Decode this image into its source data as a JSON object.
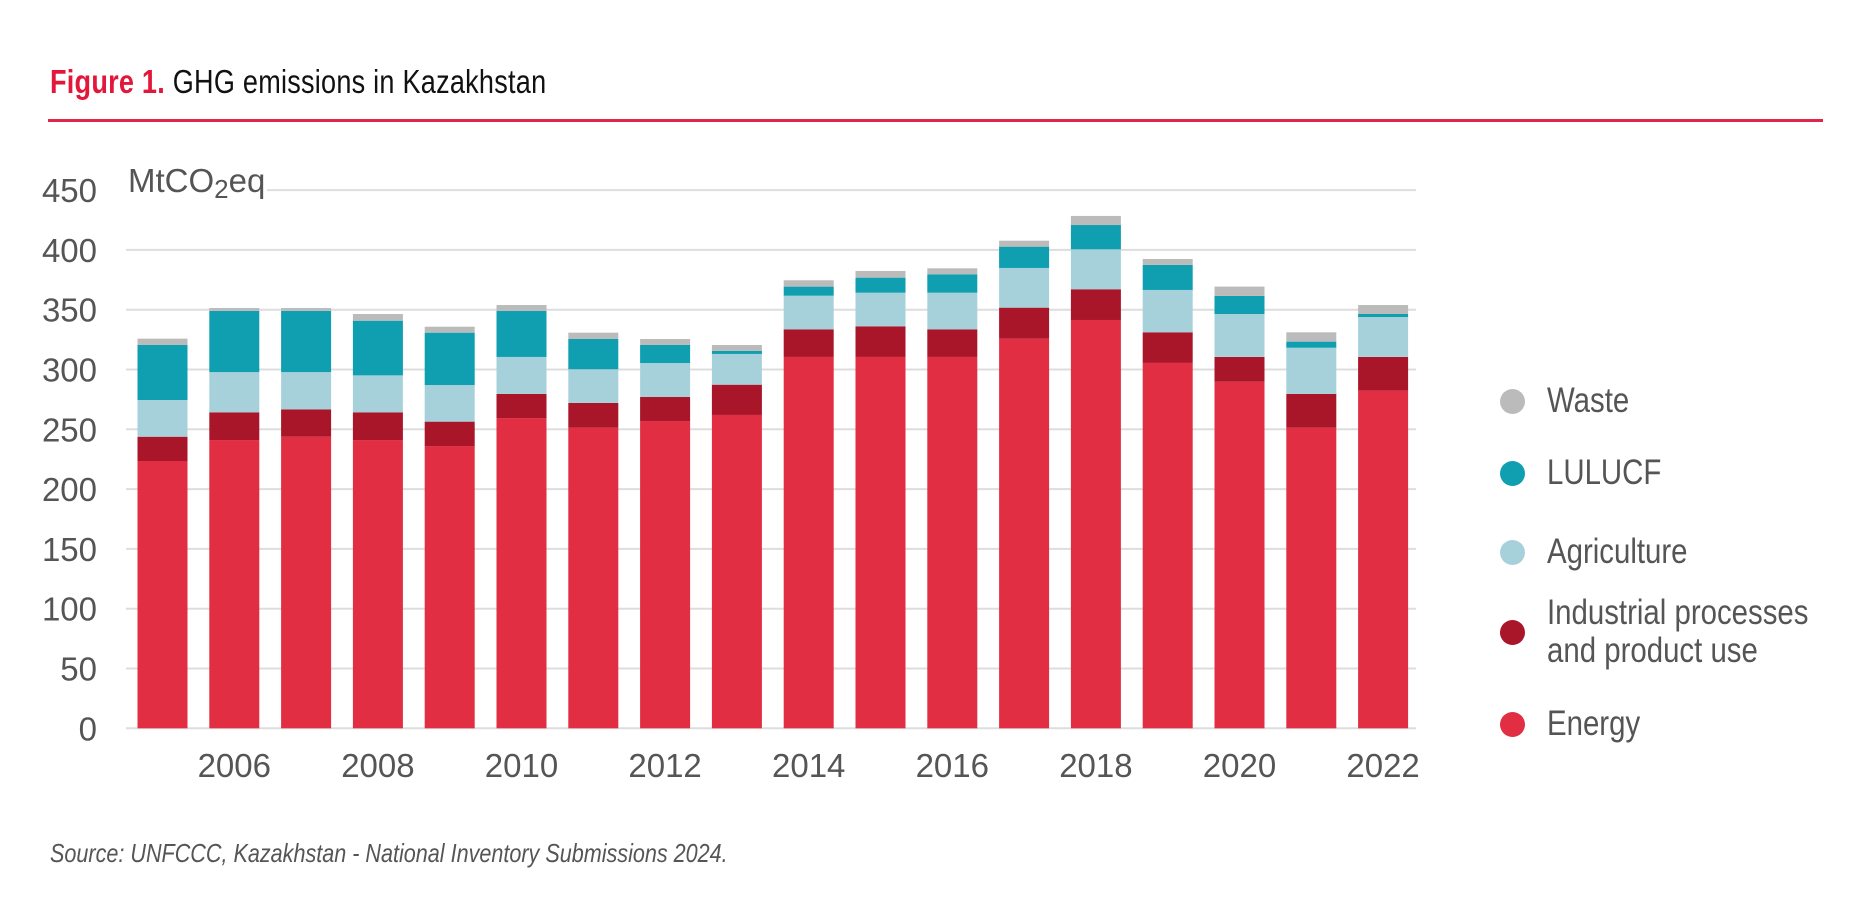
{
  "title": {
    "figure_label": "Figure 1.",
    "text": " GHG emissions in Kazakhstan"
  },
  "source": "Source: UNFCCC, Kazakhstan - National Inventory Submissions 2024.",
  "colors": {
    "title_accent": "#E2173A",
    "rule": "#E2264A",
    "gridline": "#DDDDDD",
    "tick_text": "#555555"
  },
  "chart_data": {
    "type": "bar",
    "stacked": true,
    "title": "GHG emissions in Kazakhstan",
    "xlabel": "",
    "ylabel": "MtCO2eq",
    "ylabel_parts": {
      "prefix": "MtCO",
      "sub": "2",
      "suffix": "eq"
    },
    "ylim": [
      0,
      450
    ],
    "yticks": [
      0,
      50,
      100,
      150,
      200,
      250,
      300,
      350,
      400,
      450
    ],
    "grid": true,
    "legend_position": "right",
    "categories": [
      "2005",
      "2006",
      "2007",
      "2008",
      "2009",
      "2010",
      "2011",
      "2012",
      "2013",
      "2014",
      "2015",
      "2016",
      "2017",
      "2018",
      "2019",
      "2020",
      "2021",
      "2022"
    ],
    "xtick_labels": [
      "2006",
      "2008",
      "2010",
      "2012",
      "2014",
      "2016",
      "2018",
      "2020",
      "2022"
    ],
    "series": [
      {
        "name": "Energy",
        "color": "#E12E43",
        "values": [
          223.5,
          241.0,
          243.8,
          241.0,
          236.0,
          259.4,
          251.4,
          256.9,
          262.0,
          310.5,
          310.5,
          310.5,
          325.8,
          341.4,
          305.5,
          289.8,
          251.4,
          282.3
        ]
      },
      {
        "name": "Industrial processes and product use",
        "color": "#A91629",
        "values": [
          20.3,
          23.2,
          22.9,
          23.2,
          20.4,
          20.2,
          20.6,
          20.1,
          25.3,
          23.1,
          25.6,
          23.1,
          25.9,
          25.7,
          25.6,
          20.7,
          28.2,
          28.2
        ]
      },
      {
        "name": "Agriculture",
        "color": "#A7D1DA",
        "values": [
          30.7,
          33.6,
          31.1,
          30.9,
          30.6,
          30.9,
          28.2,
          28.4,
          25.7,
          28.1,
          28.1,
          30.6,
          33.2,
          33.4,
          35.4,
          35.9,
          38.6,
          33.4
        ]
      },
      {
        "name": "LULUCF",
        "color": "#0F9FB1",
        "values": [
          46.0,
          51.2,
          51.2,
          45.7,
          43.8,
          38.4,
          25.3,
          15.1,
          2.5,
          7.6,
          12.6,
          15.4,
          17.8,
          20.3,
          20.9,
          15.1,
          5.1,
          2.5
        ]
      },
      {
        "name": "Waste",
        "color": "#BBBBBB",
        "values": [
          5.3,
          2.4,
          2.4,
          5.6,
          5.0,
          5.0,
          5.3,
          5.0,
          5.0,
          5.3,
          5.6,
          5.0,
          5.0,
          7.6,
          5.0,
          7.8,
          7.8,
          7.5
        ]
      }
    ],
    "legend": [
      {
        "label": "Waste",
        "color": "#BBBBBB"
      },
      {
        "label": "LULUCF",
        "color": "#0F9FB1"
      },
      {
        "label": "Agriculture",
        "color": "#A7D1DA"
      },
      {
        "label_lines": [
          "Industrial processes",
          "and product use"
        ],
        "color": "#A91629"
      },
      {
        "label": "Energy",
        "color": "#E12E43"
      }
    ]
  }
}
